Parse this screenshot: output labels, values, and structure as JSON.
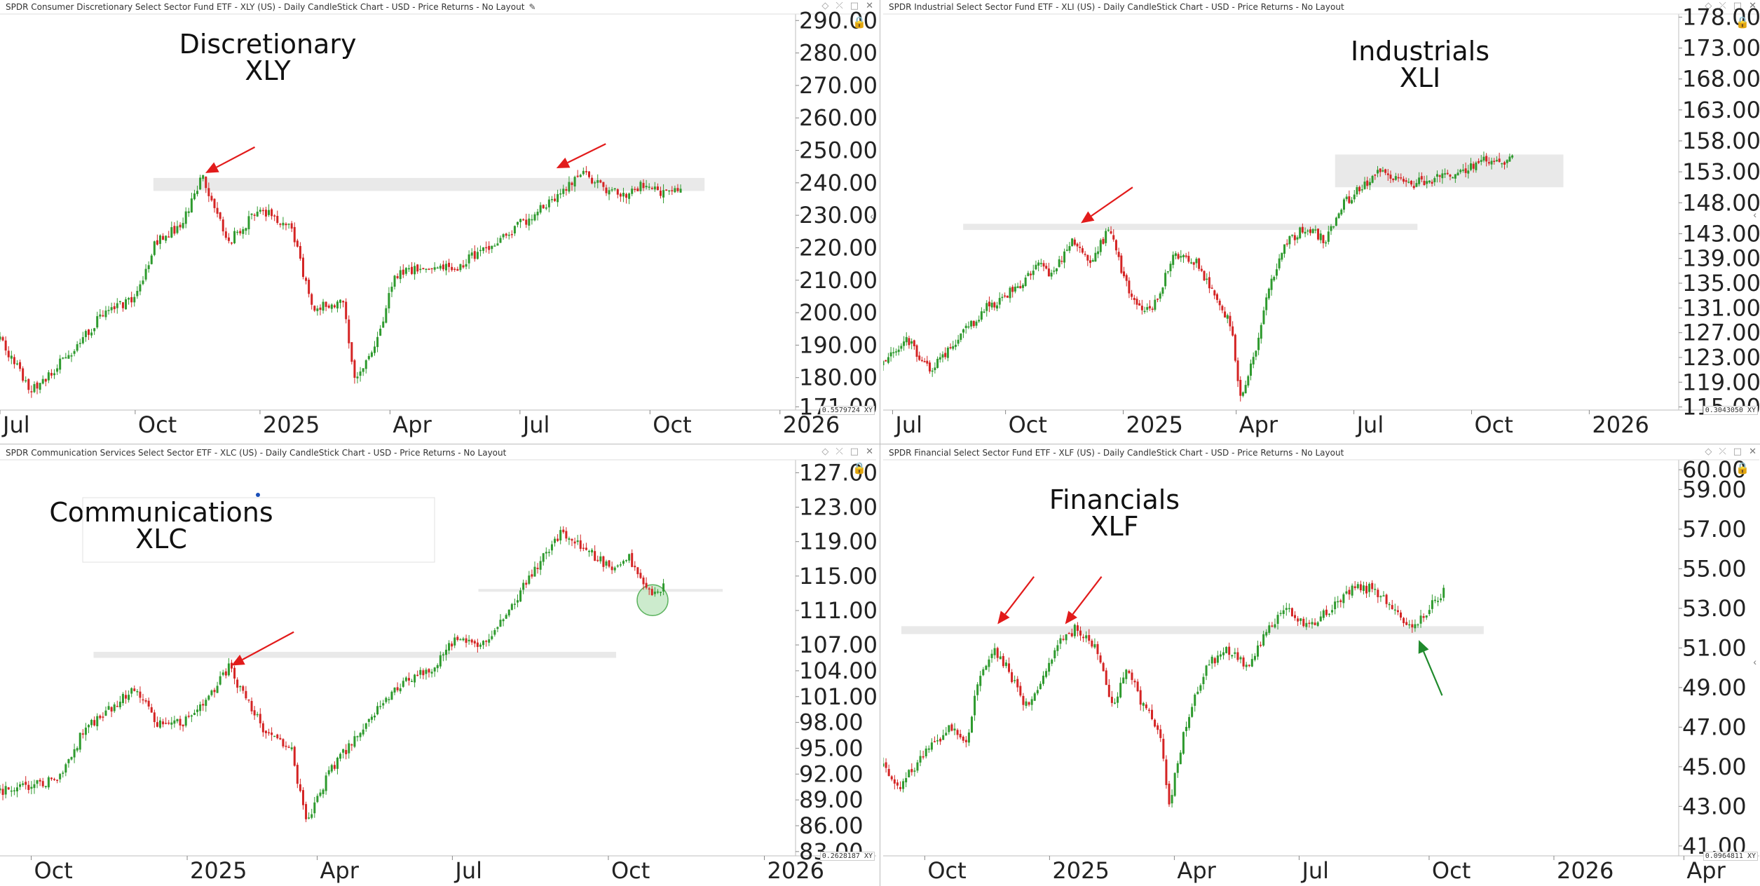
{
  "panes": [
    {
      "title": "SPDR Consumer Discretionary Select Sector Fund ETF - XLY (US) - Daily CandleStick Chart - USD - Price Returns - No Layout",
      "scale_label": "0.5579724",
      "scale_suffix": "XY",
      "edit_icon": "pencil-icon"
    },
    {
      "title": "SPDR Industrial Select Sector Fund ETF - XLI (US) - Daily CandleStick Chart - USD - Price Returns - No Layout",
      "scale_label": "0.3043050",
      "scale_suffix": "XY"
    },
    {
      "title": "SPDR Communication Services Select Sector ETF - XLC (US) - Daily CandleStick Chart - USD - Price Returns - No Layout",
      "scale_label": "0.2628187",
      "scale_suffix": "XY"
    },
    {
      "title": "SPDR Financial Select Sector Fund ETF - XLF (US) - Daily CandleStick Chart - USD - Price Returns - No Layout",
      "scale_label": "0.0964811",
      "scale_suffix": "XY"
    }
  ],
  "colors": {
    "up": "#2e9a2e",
    "down": "#d42424",
    "band": "#e9e9e9",
    "arrow_red": "#e21b1b",
    "arrow_green": "#1f8a2c",
    "circle_fill": "#bfe6c0",
    "circle_stroke": "#5db35f"
  },
  "chart_data": [
    {
      "type": "candlestick",
      "symbol": "XLY",
      "title_lines": [
        "Discretionary",
        "XLY"
      ],
      "x_range": [
        0,
        15.3
      ],
      "x_ticks": [
        {
          "label": "Jul",
          "t": 0
        },
        {
          "label": "Oct",
          "t": 2.6
        },
        {
          "label": "2025",
          "t": 5.0
        },
        {
          "label": "Apr",
          "t": 7.5
        },
        {
          "label": "Jul",
          "t": 10.0
        },
        {
          "label": "Oct",
          "t": 12.5
        },
        {
          "label": "2026",
          "t": 15.0
        }
      ],
      "ylim": [
        170,
        292
      ],
      "y_ticks": [
        "290.00",
        "280.00",
        "270.00",
        "260.00",
        "250.00",
        "240.00",
        "230.00",
        "220.00",
        "210.00",
        "200.00",
        "190.00",
        "180.00",
        "171.00"
      ],
      "y_values": [
        290,
        280,
        270,
        260,
        250,
        240,
        230,
        220,
        210,
        200,
        190,
        180,
        171
      ],
      "price_path": [
        [
          0,
          192
        ],
        [
          0.6,
          176
        ],
        [
          1.4,
          188
        ],
        [
          2.0,
          200
        ],
        [
          2.6,
          204
        ],
        [
          3.0,
          222
        ],
        [
          3.5,
          227
        ],
        [
          3.9,
          242
        ],
        [
          4.4,
          222
        ],
        [
          5.0,
          232
        ],
        [
          5.6,
          226
        ],
        [
          6.0,
          202
        ],
        [
          6.6,
          203
        ],
        [
          6.8,
          180
        ],
        [
          7.2,
          188
        ],
        [
          7.6,
          212
        ],
        [
          7.9,
          213
        ],
        [
          8.8,
          214
        ],
        [
          9.8,
          225
        ],
        [
          10.6,
          234
        ],
        [
          11.2,
          244
        ],
        [
          11.6,
          238
        ],
        [
          12.0,
          236
        ],
        [
          12.4,
          240
        ],
        [
          12.8,
          236
        ],
        [
          13.1,
          239
        ]
      ],
      "bands": [
        {
          "t1": 2.95,
          "t2": 13.55,
          "y1": 237.5,
          "y2": 241.5
        }
      ],
      "arrows": [
        {
          "from": [
            4.9,
            251
          ],
          "to": [
            3.95,
            243
          ],
          "color": "red"
        },
        {
          "from": [
            11.65,
            252
          ],
          "to": [
            10.7,
            244.5
          ],
          "color": "red"
        }
      ]
    },
    {
      "type": "candlestick",
      "symbol": "XLI",
      "title_lines": [
        "Industrials",
        "XLI"
      ],
      "x_range": [
        0,
        16.9
      ],
      "x_ticks": [
        {
          "label": "Jul",
          "t": 0.2
        },
        {
          "label": "Oct",
          "t": 2.6
        },
        {
          "label": "2025",
          "t": 5.1
        },
        {
          "label": "Apr",
          "t": 7.5
        },
        {
          "label": "Jul",
          "t": 10.0
        },
        {
          "label": "Oct",
          "t": 12.5
        },
        {
          "label": "2026",
          "t": 15.0
        }
      ],
      "ylim": [
        114.5,
        178.5
      ],
      "y_ticks": [
        "178.00",
        "173.00",
        "168.00",
        "163.00",
        "158.00",
        "153.00",
        "148.00",
        "143.00",
        "139.00",
        "135.00",
        "131.00",
        "127.00",
        "123.00",
        "119.00",
        "115.00"
      ],
      "y_values": [
        178,
        173,
        168,
        163,
        158,
        153,
        148,
        143,
        139,
        135,
        131,
        127,
        123,
        119,
        115
      ],
      "price_path": [
        [
          0,
          122
        ],
        [
          0.5,
          126
        ],
        [
          1.0,
          121
        ],
        [
          1.6,
          126
        ],
        [
          2.2,
          131
        ],
        [
          2.8,
          134
        ],
        [
          3.3,
          138
        ],
        [
          3.6,
          136
        ],
        [
          4.0,
          142
        ],
        [
          4.4,
          138
        ],
        [
          4.8,
          144
        ],
        [
          5.1,
          136
        ],
        [
          5.5,
          130
        ],
        [
          5.8,
          132
        ],
        [
          6.2,
          140
        ],
        [
          6.7,
          138
        ],
        [
          7.1,
          132
        ],
        [
          7.4,
          128
        ],
        [
          7.6,
          116
        ],
        [
          7.9,
          124
        ],
        [
          8.2,
          134
        ],
        [
          8.6,
          142
        ],
        [
          9.0,
          144
        ],
        [
          9.4,
          142
        ],
        [
          9.8,
          148
        ],
        [
          10.2,
          151
        ],
        [
          10.6,
          153
        ],
        [
          11.2,
          151
        ],
        [
          11.8,
          152
        ],
        [
          12.3,
          153
        ],
        [
          12.8,
          155
        ],
        [
          13.1,
          154
        ],
        [
          13.4,
          155
        ]
      ],
      "bands": [
        {
          "t1": 1.7,
          "t2": 11.35,
          "y1": 143.6,
          "y2": 144.6
        },
        {
          "t1": 9.6,
          "t2": 14.45,
          "y1": 150.5,
          "y2": 155.8
        }
      ],
      "arrows": [
        {
          "from": [
            5.3,
            150.5
          ],
          "to": [
            4.2,
            144.7
          ],
          "color": "red"
        }
      ]
    },
    {
      "type": "candlestick",
      "symbol": "XLC",
      "title_lines": [
        "Communications",
        "XLC"
      ],
      "x_range": [
        0,
        15.3
      ],
      "x_ticks": [
        {
          "label": "Oct",
          "t": 0.6
        },
        {
          "label": "2025",
          "t": 3.6
        },
        {
          "label": "Apr",
          "t": 6.1
        },
        {
          "label": "Jul",
          "t": 8.7
        },
        {
          "label": "Oct",
          "t": 11.7
        },
        {
          "label": "2026",
          "t": 14.7
        }
      ],
      "ylim": [
        82.5,
        128.5
      ],
      "y_ticks": [
        "127.00",
        "123.00",
        "119.00",
        "115.00",
        "111.00",
        "107.00",
        "104.00",
        "101.00",
        "98.00",
        "95.00",
        "92.00",
        "89.00",
        "86.00",
        "83.00"
      ],
      "y_values": [
        127,
        123,
        119,
        115,
        111,
        107,
        104,
        101,
        98,
        95,
        92,
        89,
        86,
        83
      ],
      "price_path": [
        [
          0,
          90
        ],
        [
          0.6,
          90.5
        ],
        [
          1.2,
          92
        ],
        [
          1.6,
          97
        ],
        [
          2.2,
          100
        ],
        [
          2.6,
          102
        ],
        [
          3.0,
          98
        ],
        [
          3.5,
          98
        ],
        [
          4.0,
          101
        ],
        [
          4.4,
          104.5
        ],
        [
          4.7,
          101
        ],
        [
          5.1,
          97
        ],
        [
          5.6,
          95
        ],
        [
          5.9,
          86
        ],
        [
          6.3,
          92
        ],
        [
          6.8,
          96
        ],
        [
          7.3,
          100
        ],
        [
          7.8,
          103
        ],
        [
          8.3,
          104
        ],
        [
          8.8,
          108
        ],
        [
          9.3,
          107
        ],
        [
          9.8,
          111
        ],
        [
          10.3,
          116
        ],
        [
          10.8,
          120
        ],
        [
          11.3,
          118
        ],
        [
          11.7,
          116
        ],
        [
          12.1,
          117
        ],
        [
          12.4,
          114
        ],
        [
          12.6,
          113
        ],
        [
          12.8,
          114
        ]
      ],
      "bands": [
        {
          "t1": 1.8,
          "t2": 11.85,
          "y1": 105.5,
          "y2": 106.2
        },
        {
          "t1": 9.2,
          "t2": 13.9,
          "y1": 113.2,
          "y2": 113.5
        }
      ],
      "circles": [
        {
          "t": 12.55,
          "y": 112.2,
          "r": 22
        }
      ],
      "arrows": [
        {
          "from": [
            5.65,
            108.5
          ],
          "to": [
            4.45,
            104.6
          ],
          "color": "red"
        }
      ]
    },
    {
      "type": "candlestick",
      "symbol": "XLF",
      "title_lines": [
        "Financials",
        "XLF"
      ],
      "x_range": [
        0,
        15.3
      ],
      "x_ticks": [
        {
          "label": "Oct",
          "t": 0.8
        },
        {
          "label": "2025",
          "t": 3.2
        },
        {
          "label": "Apr",
          "t": 5.6
        },
        {
          "label": "Jul",
          "t": 8.0
        },
        {
          "label": "Oct",
          "t": 10.5
        },
        {
          "label": "2026",
          "t": 12.9
        },
        {
          "label": "Apr",
          "t": 15.4
        }
      ],
      "ylim": [
        40.5,
        60.5
      ],
      "y_ticks": [
        "60.00",
        "59.00",
        "57.00",
        "55.00",
        "53.00",
        "51.00",
        "49.00",
        "47.00",
        "45.00",
        "43.00",
        "41.00"
      ],
      "y_values": [
        60,
        59,
        57,
        55,
        53,
        51,
        49,
        47,
        45,
        43,
        41
      ],
      "price_path": [
        [
          0,
          45
        ],
        [
          0.3,
          44
        ],
        [
          0.6,
          45
        ],
        [
          0.9,
          46
        ],
        [
          1.3,
          47
        ],
        [
          1.6,
          46
        ],
        [
          1.8,
          49
        ],
        [
          2.1,
          51
        ],
        [
          2.4,
          50
        ],
        [
          2.7,
          48
        ],
        [
          3.0,
          49
        ],
        [
          3.3,
          51
        ],
        [
          3.7,
          52
        ],
        [
          4.1,
          51
        ],
        [
          4.4,
          48
        ],
        [
          4.7,
          50
        ],
        [
          5.0,
          48
        ],
        [
          5.3,
          47
        ],
        [
          5.5,
          43
        ],
        [
          5.8,
          47
        ],
        [
          6.2,
          50
        ],
        [
          6.6,
          51
        ],
        [
          7.0,
          50
        ],
        [
          7.4,
          52
        ],
        [
          7.8,
          53
        ],
        [
          8.2,
          52
        ],
        [
          8.6,
          53
        ],
        [
          9.0,
          54
        ],
        [
          9.4,
          54
        ],
        [
          9.8,
          53
        ],
        [
          10.2,
          52
        ],
        [
          10.5,
          53
        ],
        [
          10.8,
          54
        ]
      ],
      "bands": [
        {
          "t1": 0.35,
          "t2": 11.55,
          "y1": 51.7,
          "y2": 52.1
        }
      ],
      "arrows": [
        {
          "from": [
            2.9,
            54.6
          ],
          "to": [
            2.2,
            52.2
          ],
          "color": "red"
        },
        {
          "from": [
            4.2,
            54.6
          ],
          "to": [
            3.5,
            52.2
          ],
          "color": "red"
        },
        {
          "from": [
            10.75,
            48.6
          ],
          "to": [
            10.3,
            51.4
          ],
          "color": "green"
        }
      ]
    }
  ]
}
